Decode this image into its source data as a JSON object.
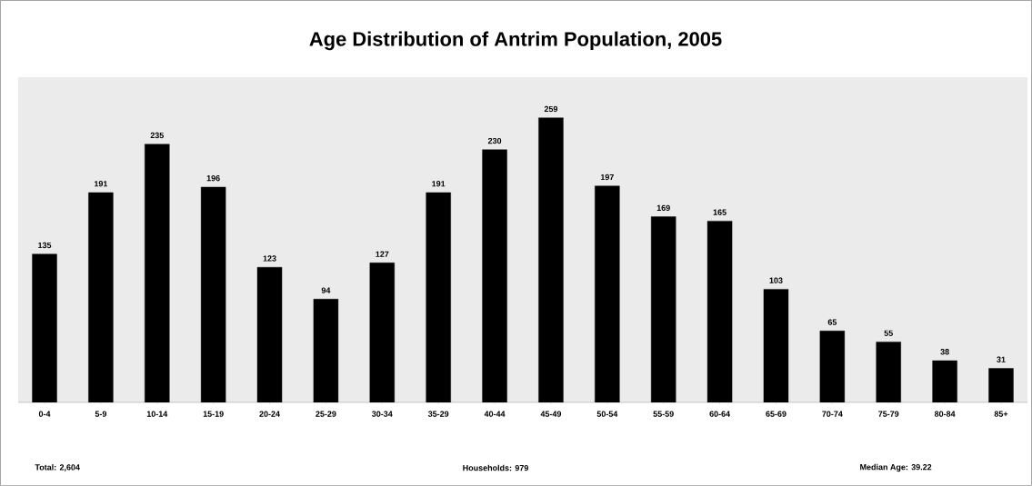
{
  "chart_data": {
    "type": "bar",
    "title": "Age Distribution of Antrim Population, 2005",
    "categories": [
      "0-4",
      "5-9",
      "10-14",
      "15-19",
      "20-24",
      "25-29",
      "30-34",
      "35-29",
      "40-44",
      "45-49",
      "50-54",
      "55-59",
      "60-64",
      "65-69",
      "70-74",
      "75-79",
      "80-84",
      "85+"
    ],
    "values": [
      135,
      191,
      235,
      196,
      123,
      94,
      127,
      191,
      230,
      259,
      197,
      169,
      165,
      103,
      65,
      55,
      38,
      31
    ],
    "color": "#000000",
    "data_labels": true,
    "annotations": [
      "Total: 2,604",
      "Households: 979",
      "Median Age:  39.22"
    ]
  }
}
